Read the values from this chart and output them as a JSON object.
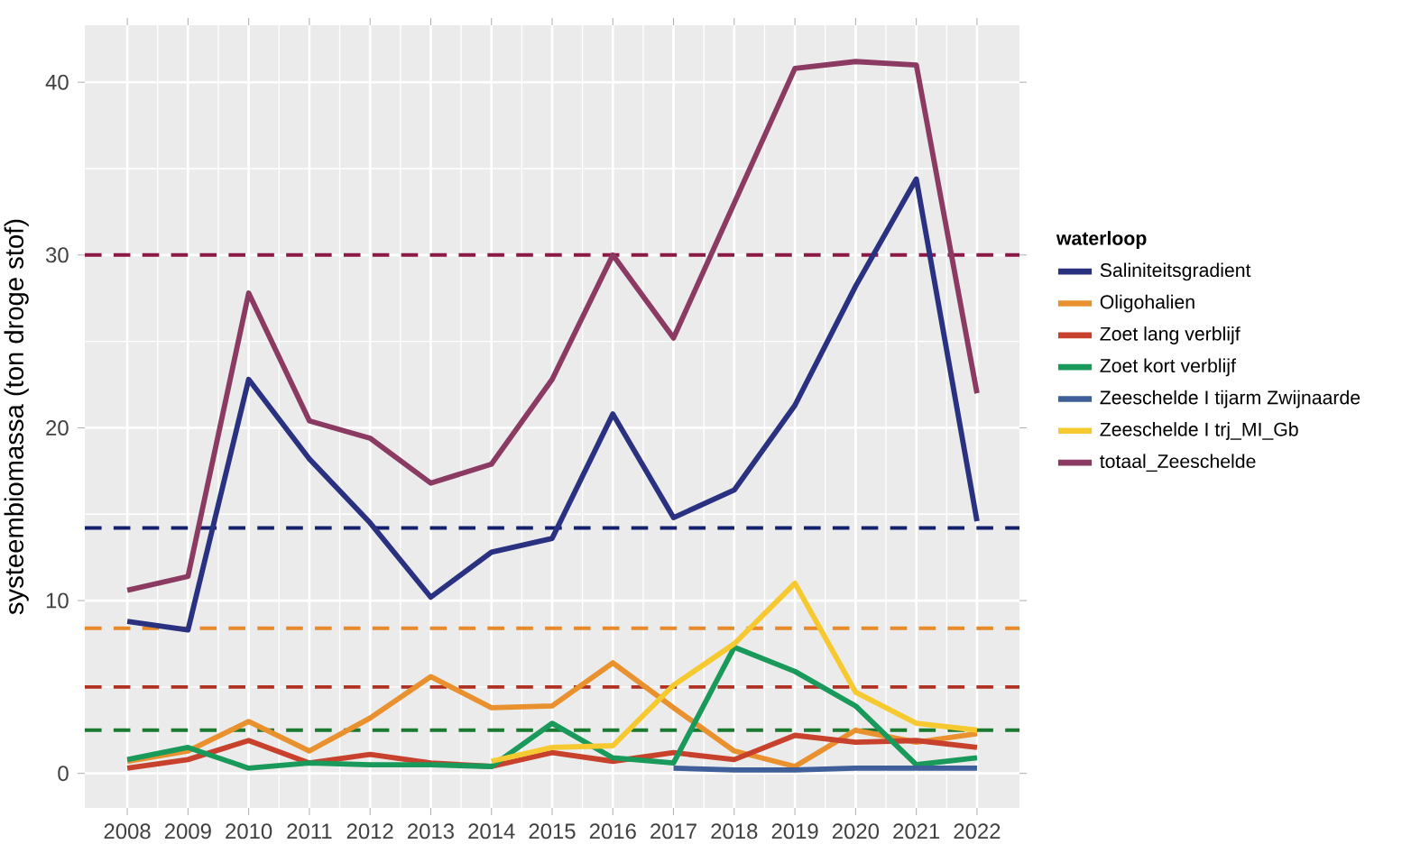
{
  "chart_data": {
    "type": "line",
    "ylabel": "systeembiomassa (ton droge stof)",
    "legend_title": "waterloop",
    "x": [
      2008,
      2009,
      2010,
      2011,
      2012,
      2013,
      2014,
      2015,
      2016,
      2017,
      2018,
      2019,
      2020,
      2021,
      2022
    ],
    "xlim": [
      2007.3,
      2022.7
    ],
    "xticks": [
      2008,
      2009,
      2010,
      2011,
      2012,
      2013,
      2014,
      2015,
      2016,
      2017,
      2018,
      2019,
      2020,
      2021,
      2022
    ],
    "ylim": [
      -2,
      43.3
    ],
    "yticks": [
      0,
      10,
      20,
      30,
      40
    ],
    "grid": true,
    "legend": "right",
    "line_style": "solid",
    "marker": "none",
    "series": [
      {
        "name": "Saliniteitsgradient",
        "color": "#2a3180",
        "values": [
          8.8,
          8.3,
          22.8,
          18.2,
          14.5,
          10.2,
          12.8,
          13.6,
          20.8,
          14.8,
          16.4,
          21.3,
          28.2,
          34.4,
          14.6
        ]
      },
      {
        "name": "Oligohalien",
        "color": "#e8912e",
        "values": [
          0.7,
          1.3,
          3.0,
          1.3,
          3.2,
          5.6,
          3.8,
          3.9,
          6.4,
          3.8,
          1.3,
          0.4,
          2.5,
          1.8,
          2.3
        ]
      },
      {
        "name": "Zoet lang verblijf",
        "color": "#c8412c",
        "values": [
          0.3,
          0.8,
          1.9,
          0.6,
          1.1,
          0.6,
          0.4,
          1.2,
          0.7,
          1.2,
          0.8,
          2.2,
          1.8,
          1.9,
          1.5
        ]
      },
      {
        "name": "Zoet kort verblijf",
        "color": "#19995a",
        "values": [
          0.8,
          1.5,
          0.3,
          0.6,
          0.5,
          0.5,
          0.4,
          2.9,
          0.9,
          0.6,
          7.3,
          5.9,
          3.9,
          0.5,
          0.9
        ]
      },
      {
        "name": "Zeeschelde I tijarm Zwijnaarde",
        "color": "#3e5f9a",
        "values": [
          null,
          null,
          null,
          null,
          null,
          null,
          null,
          null,
          null,
          0.3,
          0.2,
          0.2,
          0.3,
          0.3,
          0.3
        ]
      },
      {
        "name": "Zeeschelde I trj_MI_Gb",
        "color": "#f5c92f",
        "values": [
          null,
          null,
          null,
          null,
          null,
          null,
          0.7,
          1.5,
          1.6,
          5.1,
          7.5,
          11.0,
          4.7,
          2.9,
          2.5
        ]
      },
      {
        "name": "totaal_Zeeschelde",
        "color": "#8b3a62",
        "values": [
          10.6,
          11.4,
          27.8,
          20.4,
          19.4,
          16.8,
          17.9,
          22.8,
          30.0,
          25.2,
          33.0,
          40.8,
          41.2,
          41.0,
          22.0
        ]
      }
    ],
    "ref_lines": [
      {
        "axis": "y",
        "value": 30,
        "color": "#8c1846",
        "line_style": "dashed"
      },
      {
        "axis": "y",
        "value": 14.2,
        "color": "#141f6e",
        "line_style": "dashed"
      },
      {
        "axis": "y",
        "value": 8.4,
        "color": "#e8892a",
        "line_style": "dashed"
      },
      {
        "axis": "y",
        "value": 5.0,
        "color": "#b03022",
        "line_style": "dashed"
      },
      {
        "axis": "y",
        "value": 2.5,
        "color": "#1a7a30",
        "line_style": "dashed"
      }
    ]
  }
}
